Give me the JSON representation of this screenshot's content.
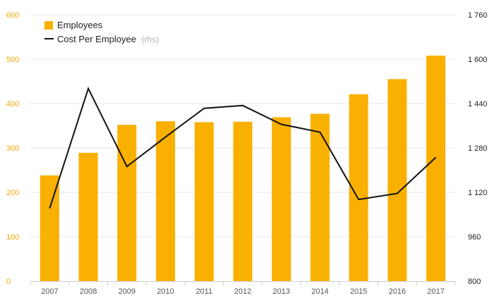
{
  "colors": {
    "bar": "#f9b000",
    "line": "#111111",
    "left_axis_text": "#f2a900",
    "right_axis_text": "#222222",
    "grid": "#e6e6e6",
    "axis": "#cccccc"
  },
  "chart_data": {
    "type": "bar",
    "categories": [
      "2007",
      "2008",
      "2009",
      "2010",
      "2011",
      "2012",
      "2013",
      "2014",
      "2015",
      "2016",
      "2017"
    ],
    "series": [
      {
        "name": "Employees",
        "type": "bar",
        "axis": "left",
        "values": [
          238,
          289,
          352,
          360,
          358,
          359,
          369,
          377,
          421,
          455,
          508
        ]
      },
      {
        "name": "Cost Per Employee",
        "name_suffix": "(rhs)",
        "type": "line",
        "axis": "right",
        "values": [
          1062,
          1494,
          1213,
          1319,
          1423,
          1433,
          1365,
          1337,
          1094,
          1116,
          1246
        ]
      }
    ],
    "ylim_left": [
      0,
      600
    ],
    "yticks_left": [
      "0",
      "100",
      "200",
      "300",
      "400",
      "500",
      "600"
    ],
    "ylim_right": [
      800,
      1760
    ],
    "yticks_right": [
      "800",
      "960",
      "1 120",
      "1 280",
      "1 440",
      "1 600",
      "1 760"
    ],
    "grid": true,
    "legend": "top-left"
  }
}
